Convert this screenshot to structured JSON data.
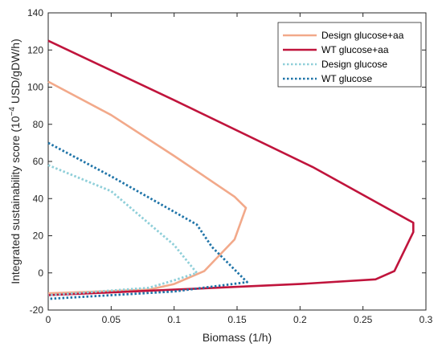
{
  "chart_data": {
    "type": "line",
    "xlabel": "Biomass (1/h)",
    "ylabel_parts": [
      "Integrated sustainability score (10",
      "−4",
      " USD/gDW/h)"
    ],
    "xlim": [
      0,
      0.3
    ],
    "ylim": [
      -20,
      140
    ],
    "x_ticks": [
      "0",
      "0.05",
      "0.1",
      "0.15",
      "0.2",
      "0.25",
      "0.3"
    ],
    "y_ticks": [
      "-20",
      "0",
      "20",
      "40",
      "60",
      "80",
      "100",
      "120",
      "140"
    ],
    "legend_position": "top-right",
    "series": [
      {
        "name": "Design glucose+aa",
        "color": "#F2A98A",
        "style": "solid",
        "points": [
          [
            0,
            103
          ],
          [
            0.05,
            85
          ],
          [
            0.1,
            63
          ],
          [
            0.148,
            41
          ],
          [
            0.157,
            35
          ],
          [
            0.148,
            18
          ],
          [
            0.124,
            1
          ],
          [
            0.1,
            -6
          ],
          [
            0.08,
            -9
          ],
          [
            0,
            -11
          ]
        ]
      },
      {
        "name": "WT glucose+aa",
        "color": "#C0143C",
        "style": "solid",
        "points": [
          [
            0,
            125
          ],
          [
            0.1,
            93
          ],
          [
            0.21,
            57
          ],
          [
            0.29,
            27
          ],
          [
            0.29,
            22
          ],
          [
            0.275,
            1
          ],
          [
            0.26,
            -3.5
          ],
          [
            0.2,
            -6
          ],
          [
            0.1,
            -9
          ],
          [
            0,
            -12
          ]
        ]
      },
      {
        "name": "Design glucose",
        "color": "#8FCFD9",
        "style": "dotted",
        "points": [
          [
            0,
            58
          ],
          [
            0.05,
            44
          ],
          [
            0.1,
            15
          ],
          [
            0.118,
            0
          ],
          [
            0.1,
            -4
          ],
          [
            0.08,
            -8
          ],
          [
            0,
            -12
          ]
        ]
      },
      {
        "name": "WT glucose",
        "color": "#1F74A8",
        "style": "dotted",
        "points": [
          [
            0,
            70
          ],
          [
            0.05,
            52
          ],
          [
            0.118,
            26
          ],
          [
            0.13,
            14
          ],
          [
            0.158,
            -5
          ],
          [
            0.1,
            -10
          ],
          [
            0,
            -14
          ]
        ]
      }
    ]
  }
}
